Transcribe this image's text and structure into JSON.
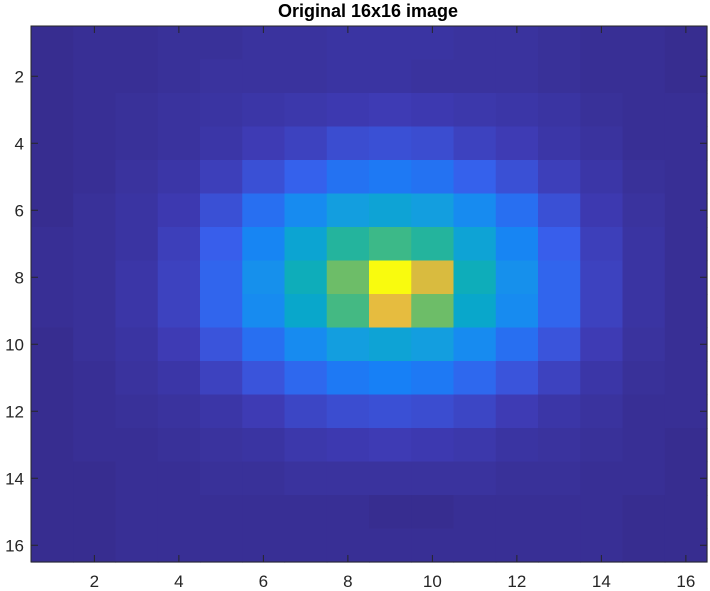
{
  "chart_data": {
    "type": "heatmap",
    "title": "Original 16x16 image",
    "xlabel": "",
    "ylabel": "",
    "xlim": [
      0.5,
      16.5
    ],
    "ylim": [
      0.5,
      16.5
    ],
    "y_direction": "reversed",
    "x_ticks": [
      2,
      4,
      6,
      8,
      10,
      12,
      14,
      16
    ],
    "y_ticks": [
      2,
      4,
      6,
      8,
      10,
      12,
      14,
      16
    ],
    "x_tick_labels": [
      "2",
      "4",
      "6",
      "8",
      "10",
      "12",
      "14",
      "16"
    ],
    "y_tick_labels": [
      "2",
      "4",
      "6",
      "8",
      "10",
      "12",
      "14",
      "16"
    ],
    "colormap": "parula",
    "clim": [
      0.0,
      1.0
    ],
    "grid": false,
    "values": [
      [
        0.02,
        0.03,
        0.03,
        0.04,
        0.04,
        0.05,
        0.05,
        0.06,
        0.06,
        0.06,
        0.05,
        0.05,
        0.04,
        0.03,
        0.03,
        0.02
      ],
      [
        0.02,
        0.03,
        0.03,
        0.04,
        0.05,
        0.05,
        0.05,
        0.06,
        0.06,
        0.05,
        0.05,
        0.05,
        0.04,
        0.03,
        0.03,
        0.02
      ],
      [
        0.02,
        0.03,
        0.04,
        0.05,
        0.06,
        0.07,
        0.08,
        0.09,
        0.1,
        0.09,
        0.08,
        0.07,
        0.06,
        0.04,
        0.03,
        0.03
      ],
      [
        0.02,
        0.03,
        0.04,
        0.05,
        0.07,
        0.1,
        0.12,
        0.15,
        0.16,
        0.15,
        0.12,
        0.1,
        0.07,
        0.05,
        0.03,
        0.03
      ],
      [
        0.02,
        0.03,
        0.05,
        0.07,
        0.11,
        0.16,
        0.21,
        0.26,
        0.28,
        0.26,
        0.21,
        0.16,
        0.11,
        0.07,
        0.04,
        0.03
      ],
      [
        0.02,
        0.04,
        0.06,
        0.09,
        0.16,
        0.25,
        0.34,
        0.42,
        0.45,
        0.42,
        0.34,
        0.25,
        0.16,
        0.09,
        0.05,
        0.03
      ],
      [
        0.03,
        0.04,
        0.06,
        0.11,
        0.2,
        0.32,
        0.46,
        0.58,
        0.62,
        0.58,
        0.45,
        0.32,
        0.2,
        0.11,
        0.06,
        0.03
      ],
      [
        0.03,
        0.04,
        0.07,
        0.12,
        0.22,
        0.36,
        0.52,
        0.68,
        1.0,
        0.82,
        0.52,
        0.36,
        0.22,
        0.12,
        0.06,
        0.03
      ],
      [
        0.03,
        0.04,
        0.07,
        0.12,
        0.22,
        0.34,
        0.48,
        0.63,
        0.85,
        0.68,
        0.48,
        0.34,
        0.22,
        0.12,
        0.06,
        0.03
      ],
      [
        0.02,
        0.04,
        0.06,
        0.1,
        0.17,
        0.25,
        0.34,
        0.42,
        0.45,
        0.42,
        0.34,
        0.25,
        0.17,
        0.1,
        0.05,
        0.03
      ],
      [
        0.02,
        0.03,
        0.05,
        0.07,
        0.12,
        0.17,
        0.23,
        0.28,
        0.3,
        0.28,
        0.23,
        0.17,
        0.12,
        0.07,
        0.04,
        0.03
      ],
      [
        0.02,
        0.03,
        0.04,
        0.05,
        0.07,
        0.1,
        0.13,
        0.15,
        0.16,
        0.15,
        0.13,
        0.1,
        0.07,
        0.05,
        0.03,
        0.03
      ],
      [
        0.02,
        0.03,
        0.03,
        0.04,
        0.05,
        0.06,
        0.08,
        0.09,
        0.1,
        0.09,
        0.08,
        0.06,
        0.05,
        0.04,
        0.03,
        0.02
      ],
      [
        0.02,
        0.02,
        0.03,
        0.03,
        0.04,
        0.04,
        0.05,
        0.05,
        0.05,
        0.05,
        0.05,
        0.04,
        0.04,
        0.03,
        0.03,
        0.02
      ],
      [
        0.02,
        0.02,
        0.03,
        0.03,
        0.03,
        0.03,
        0.03,
        0.03,
        0.02,
        0.02,
        0.03,
        0.03,
        0.03,
        0.03,
        0.02,
        0.02
      ],
      [
        0.02,
        0.02,
        0.03,
        0.03,
        0.03,
        0.03,
        0.03,
        0.03,
        0.03,
        0.03,
        0.03,
        0.03,
        0.03,
        0.03,
        0.02,
        0.02
      ]
    ]
  }
}
